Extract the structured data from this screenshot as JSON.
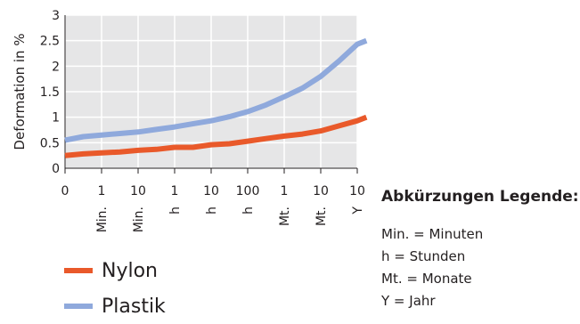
{
  "chart_data": {
    "type": "line",
    "ylabel": "Deformation in %",
    "ylim": [
      0,
      3
    ],
    "y_ticks": [
      "0",
      "0.5",
      "1",
      "1.5",
      "2",
      "2.5",
      "3"
    ],
    "x_ticks": [
      {
        "num": "0",
        "unit": ""
      },
      {
        "num": "1",
        "unit": "Min."
      },
      {
        "num": "10",
        "unit": "Min."
      },
      {
        "num": "1",
        "unit": "h"
      },
      {
        "num": "10",
        "unit": "h"
      },
      {
        "num": "100",
        "unit": "h"
      },
      {
        "num": "1",
        "unit": "Mt."
      },
      {
        "num": "10",
        "unit": "Mt."
      },
      {
        "num": "10",
        "unit": "Y"
      }
    ],
    "grid": true,
    "background": "#e6e6e7",
    "series": [
      {
        "name": "Nylon",
        "color": "#e9592a",
        "points": [
          [
            0,
            0.25
          ],
          [
            0.5,
            0.28
          ],
          [
            1,
            0.3
          ],
          [
            1.5,
            0.32
          ],
          [
            2,
            0.35
          ],
          [
            2.5,
            0.37
          ],
          [
            3,
            0.41
          ],
          [
            3.5,
            0.41
          ],
          [
            4,
            0.46
          ],
          [
            4.5,
            0.48
          ],
          [
            5,
            0.53
          ],
          [
            5.5,
            0.58
          ],
          [
            6,
            0.63
          ],
          [
            6.5,
            0.67
          ],
          [
            7,
            0.73
          ],
          [
            7.5,
            0.83
          ],
          [
            8,
            0.93
          ],
          [
            8.25,
            1.0
          ]
        ]
      },
      {
        "name": "Plastik",
        "color": "#8fa9dc",
        "points": [
          [
            0,
            0.55
          ],
          [
            0.5,
            0.62
          ],
          [
            1,
            0.65
          ],
          [
            1.5,
            0.68
          ],
          [
            2,
            0.71
          ],
          [
            2.5,
            0.76
          ],
          [
            3,
            0.81
          ],
          [
            3.5,
            0.87
          ],
          [
            4,
            0.93
          ],
          [
            4.5,
            1.01
          ],
          [
            5,
            1.11
          ],
          [
            5.5,
            1.24
          ],
          [
            6,
            1.4
          ],
          [
            6.5,
            1.57
          ],
          [
            7,
            1.8
          ],
          [
            7.5,
            2.1
          ],
          [
            8,
            2.43
          ],
          [
            8.25,
            2.5
          ]
        ]
      }
    ]
  },
  "legend": {
    "items": [
      {
        "label": "Nylon",
        "color": "#e9592a"
      },
      {
        "label": "Plastik",
        "color": "#8fa9dc"
      }
    ]
  },
  "abbreviations": {
    "title": "Abkürzungen Legende:",
    "items": [
      "Min. = Minuten",
      "h = Stunden",
      "Mt. = Monate",
      "Y = Jahr"
    ]
  }
}
